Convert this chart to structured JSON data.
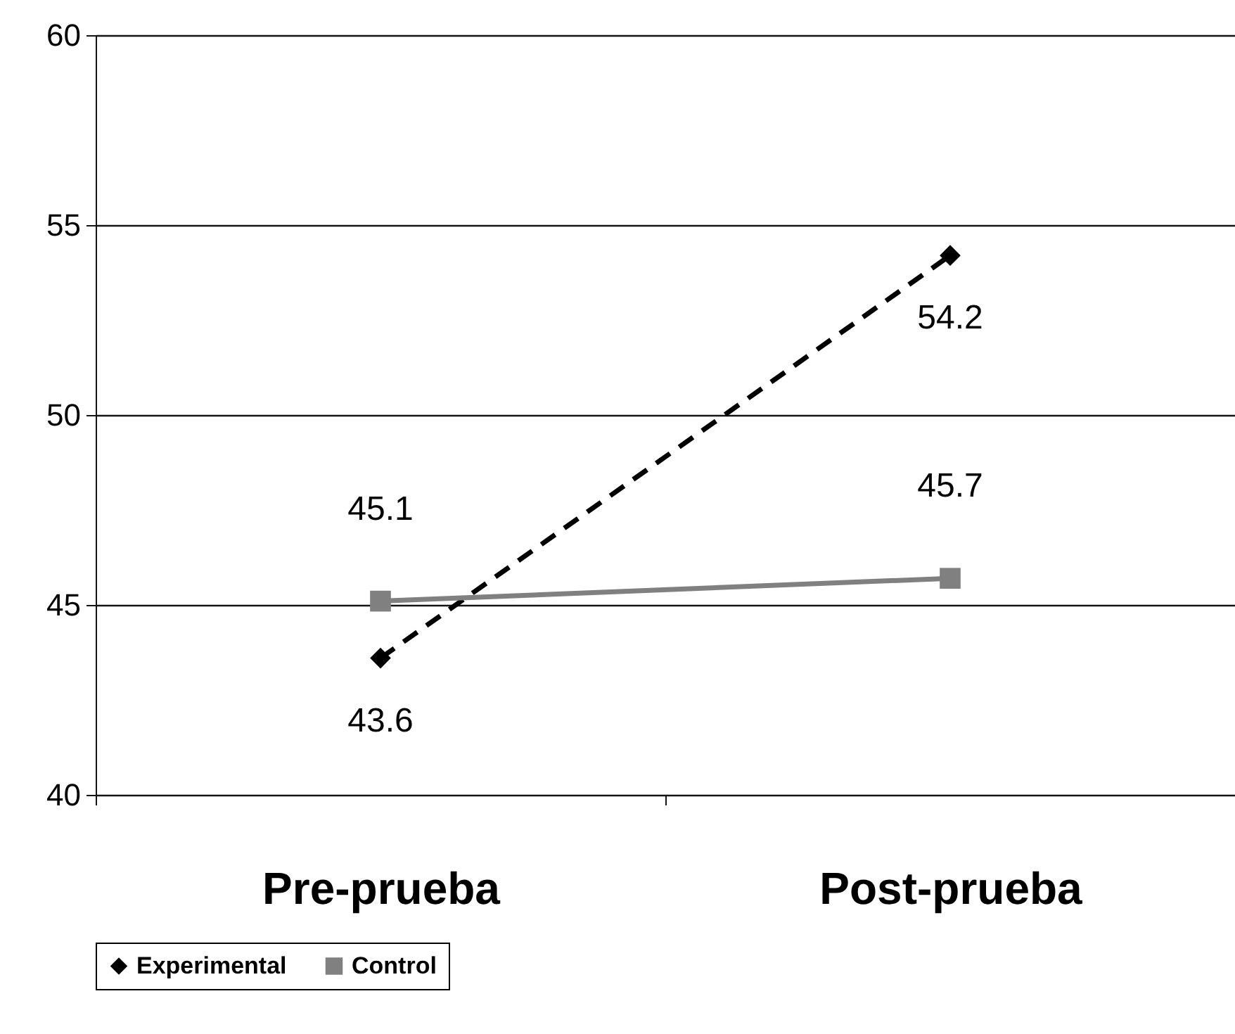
{
  "chart_data": {
    "type": "line",
    "categories": [
      "Pre-prueba",
      "Post-prueba"
    ],
    "series": [
      {
        "name": "Experimental",
        "color": "#000000",
        "values": [
          43.6,
          54.2
        ],
        "line_style": "dashed",
        "marker": "diamond"
      },
      {
        "name": "Control",
        "color": "#808080",
        "values": [
          45.1,
          45.7
        ],
        "line_style": "solid",
        "marker": "square"
      }
    ],
    "ylim": [
      40,
      60
    ],
    "yticks": [
      40,
      45,
      50,
      55,
      60
    ],
    "grid": "y",
    "legend": "bottom",
    "data_labels": true
  }
}
